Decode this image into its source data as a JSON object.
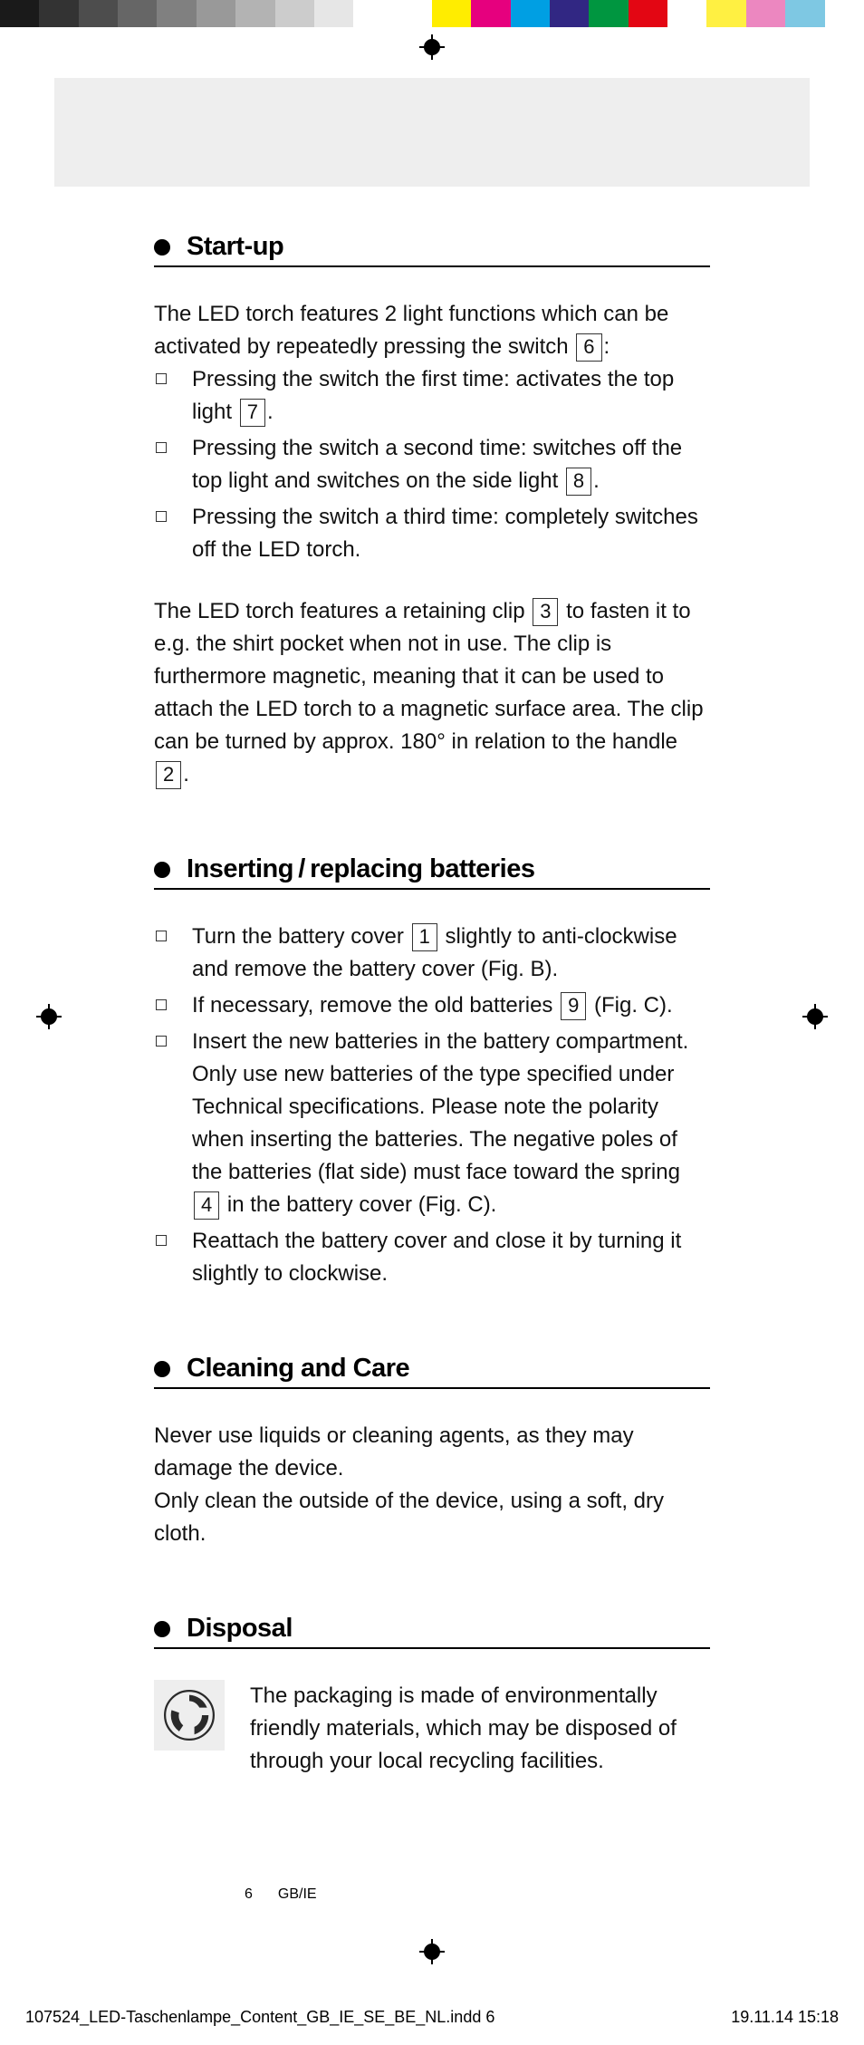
{
  "colorBar": {
    "grays": [
      "#1a1a1a",
      "#333333",
      "#4d4d4d",
      "#666666",
      "#808080",
      "#999999",
      "#b3b3b3",
      "#cccccc",
      "#e6e6e6",
      "#ffffff"
    ],
    "colors": [
      "#ffffff",
      "#ffed00",
      "#e6007e",
      "#009fe3",
      "#312783",
      "#009640",
      "#e30613",
      "#ffffff",
      "#fff042",
      "#ec87c0",
      "#7ec8e3",
      "#ffffff"
    ]
  },
  "sections": {
    "startup": {
      "title": "Start-up",
      "intro_pre": "The LED torch features 2 light functions which can be activated by repeatedly pressing the switch ",
      "intro_ref": "6",
      "intro_post": ":",
      "items": [
        {
          "pre": "Pressing the switch the first time: activates the top light ",
          "ref": "7",
          "post": "."
        },
        {
          "pre": "Pressing the switch a second time: switches off the top light and switches on the side light ",
          "ref": "8",
          "post": "."
        },
        {
          "pre": "Pressing the switch a third time: completely switches off the LED torch.",
          "ref": null,
          "post": ""
        }
      ],
      "para2_a": "The LED torch features a retaining clip ",
      "para2_ref1": "3",
      "para2_b": " to fasten it to e.g. the shirt pocket when not in use. The clip is furthermore magnetic, meaning that it can be used to attach the LED torch to a magnetic surface area. The clip can be turned by approx. 180° in relation to the handle ",
      "para2_ref2": "2",
      "para2_c": "."
    },
    "batteries": {
      "title": "Inserting / replacing batteries",
      "items": [
        {
          "pre": "Turn the battery cover ",
          "ref": "1",
          "post": " slightly to anti-clockwise and remove the battery cover (Fig. B)."
        },
        {
          "pre": "If necessary, remove the old batteries ",
          "ref": "9",
          "post": " (Fig. C)."
        },
        {
          "pre": "Insert the new batteries in the battery compartment. Only use new batteries of the type specified under Technical specifications. Please note the polarity when inserting the batteries. The negative poles of the batteries (flat side) must face toward the spring ",
          "ref": "4",
          "post": " in the battery cover (Fig. C)."
        },
        {
          "pre": "Reattach the battery cover and close it by turning it slightly to clockwise.",
          "ref": null,
          "post": ""
        }
      ]
    },
    "cleaning": {
      "title": "Cleaning and Care",
      "p1": "Never use liquids or cleaning agents, as they may damage the device.",
      "p2": "Only clean the outside of the device, using a soft, dry cloth."
    },
    "disposal": {
      "title": "Disposal",
      "text": "The packaging is made of environmentally friendly materials, which may be disposed of through your local recycling facilities."
    }
  },
  "footer": {
    "pageNum": "6",
    "locale": "GB/IE",
    "filename": "107524_LED-Taschenlampe_Content_GB_IE_SE_BE_NL.indd   6",
    "datetime": "19.11.14   15:18"
  }
}
